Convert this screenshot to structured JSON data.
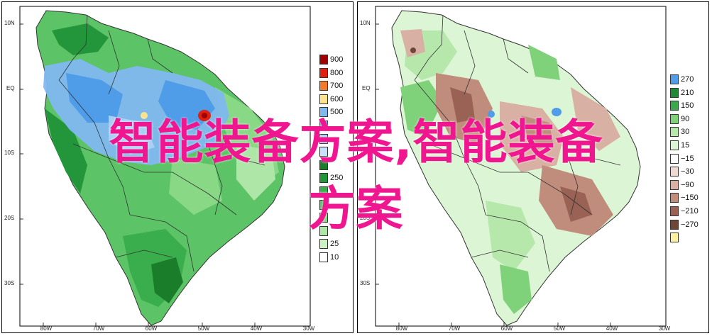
{
  "lat_labels": [
    "10N",
    "EQ",
    "10S",
    "20S",
    "30S"
  ],
  "lon_labels": [
    "80W",
    "70W",
    "60W",
    "50W",
    "40W",
    "30W"
  ],
  "left_map": {
    "legend": [
      {
        "label": "900",
        "color": "#a00000"
      },
      {
        "label": "800",
        "color": "#e02010"
      },
      {
        "label": "700",
        "color": "#f27a28"
      },
      {
        "label": "600",
        "color": "#fce390"
      },
      {
        "label": "500",
        "color": "#80b8f0"
      },
      {
        "label": "",
        "color": "#4f9ce8"
      },
      {
        "label": "",
        "color": "#a9cff5"
      },
      {
        "label": "",
        "color": "#c8e0f8"
      },
      {
        "label": "",
        "color": "#1a7d2a"
      },
      {
        "label": "250",
        "color": "#23953a"
      },
      {
        "label": "",
        "color": "#3aae4c"
      },
      {
        "label": "",
        "color": "#5cc466"
      },
      {
        "label": "",
        "color": "#88d886"
      },
      {
        "label": "",
        "color": "#aee6a8"
      },
      {
        "label": "25",
        "color": "#cdf2c4"
      },
      {
        "label": "10",
        "color": "#ffffff"
      }
    ]
  },
  "right_map": {
    "legend": [
      {
        "label": "270",
        "color": "#4f9ce8"
      },
      {
        "label": "210",
        "color": "#1f8a35"
      },
      {
        "label": "150",
        "color": "#3aa94a"
      },
      {
        "label": "90",
        "color": "#7fd27a"
      },
      {
        "label": "30",
        "color": "#b6e8ac"
      },
      {
        "label": "15",
        "color": "#dcf5d4"
      },
      {
        "label": "−15",
        "color": "#ffffff"
      },
      {
        "label": "−30",
        "color": "#efd9d2"
      },
      {
        "label": "−90",
        "color": "#d9b0a4"
      },
      {
        "label": "−150",
        "color": "#c08c7c"
      },
      {
        "label": "−210",
        "color": "#996255"
      },
      {
        "label": "−270",
        "color": "#6f4538"
      },
      {
        "label": "",
        "color": "#fff2a0"
      }
    ]
  },
  "watermark": {
    "line1": "智能装备方案,智能装备",
    "line2": "方案"
  }
}
